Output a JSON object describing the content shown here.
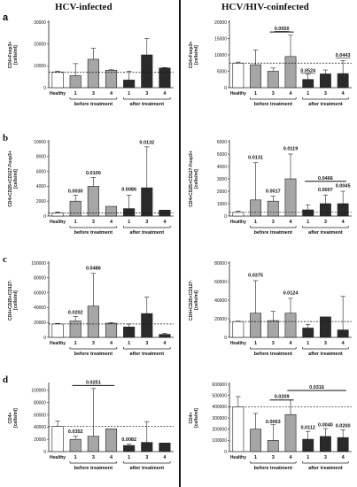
{
  "titles": {
    "left": "HCV-infected",
    "right": "HCV/HIV-coinfected"
  },
  "panel_letters": [
    "a",
    "b",
    "c",
    "d"
  ],
  "chart_data": [
    {
      "id": "a-left",
      "type": "bar",
      "ylabel": [
        "CD4+Foxp3+",
        "[cells/ml]"
      ],
      "ylim": [
        0,
        30000
      ],
      "yticks": [
        0,
        10000,
        20000,
        30000
      ],
      "yticklabels": [
        "0",
        "10000",
        "20000",
        "30000"
      ],
      "baseline": 7000,
      "bars": [
        {
          "label": "Healthy",
          "value": 7200,
          "err": 300,
          "group": "healthy"
        },
        {
          "label": "1",
          "value": 5500,
          "err": 5500,
          "group": "before"
        },
        {
          "label": "3",
          "value": 13000,
          "err": 5000,
          "group": "before"
        },
        {
          "label": "4",
          "value": 8000,
          "err": 200,
          "group": "before"
        },
        {
          "label": "1",
          "value": 3500,
          "err": 4000,
          "group": "after"
        },
        {
          "label": "3",
          "value": 15000,
          "err": 7500,
          "group": "after"
        },
        {
          "label": "4",
          "value": 9000,
          "err": 200,
          "group": "after"
        }
      ],
      "annotations": [],
      "brackets": []
    },
    {
      "id": "a-right",
      "type": "bar",
      "ylabel": [
        "CD4+Foxp3+",
        "[cells/ml]"
      ],
      "ylim": [
        0,
        20000
      ],
      "yticks": [
        0,
        5000,
        10000,
        15000,
        20000
      ],
      "yticklabels": [
        "0",
        "5000",
        "10000",
        "15000",
        "20000"
      ],
      "baseline": 7500,
      "bars": [
        {
          "label": "Healthy",
          "value": 7500,
          "err": 300,
          "group": "healthy"
        },
        {
          "label": "1",
          "value": 7000,
          "err": 4500,
          "group": "before"
        },
        {
          "label": "3",
          "value": 5000,
          "err": 1000,
          "group": "before"
        },
        {
          "label": "4",
          "value": 9500,
          "err": 6500,
          "group": "before"
        },
        {
          "label": "1",
          "value": 2500,
          "err": 1600,
          "group": "after"
        },
        {
          "label": "3",
          "value": 4200,
          "err": 1200,
          "group": "after"
        },
        {
          "label": "4",
          "value": 4300,
          "err": 4000,
          "group": "after"
        }
      ],
      "annotations": [
        {
          "text": "0.0524",
          "bar": 4,
          "y": 4300,
          "under": true
        },
        {
          "text": "0.0443",
          "bar": 6,
          "y": 9000,
          "under": true
        }
      ],
      "brackets": [
        {
          "text": "0.0550",
          "from": 2,
          "to": 3,
          "y": 17000,
          "under": true
        }
      ]
    },
    {
      "id": "b-left",
      "type": "bar",
      "ylabel": [
        "CD4+CD25+CD127-Foxp3+",
        "[cells/ml]"
      ],
      "ylim": [
        0,
        10000
      ],
      "yticks": [
        0,
        2000,
        4000,
        6000,
        8000,
        10000
      ],
      "yticklabels": [
        "0",
        "2000",
        "4000",
        "6000",
        "8000",
        "10000"
      ],
      "baseline": 400,
      "bars": [
        {
          "label": "Healthy",
          "value": 400,
          "err": 150,
          "group": "healthy"
        },
        {
          "label": "1",
          "value": 2000,
          "err": 800,
          "group": "before"
        },
        {
          "label": "3",
          "value": 4000,
          "err": 1200,
          "group": "before"
        },
        {
          "label": "4",
          "value": 1300,
          "err": 0,
          "group": "before"
        },
        {
          "label": "1",
          "value": 1000,
          "err": 1800,
          "group": "after"
        },
        {
          "label": "3",
          "value": 3800,
          "err": 5500,
          "group": "after"
        },
        {
          "label": "4",
          "value": 800,
          "err": 0,
          "group": "after"
        }
      ],
      "annotations": [
        {
          "text": "0.0030",
          "bar": 1,
          "y": 3000
        },
        {
          "text": "0.0100",
          "bar": 2,
          "y": 5400
        },
        {
          "text": "0.0086",
          "bar": 4,
          "y": 3200
        },
        {
          "text": "0.0132",
          "bar": 5,
          "y": 9500
        }
      ],
      "brackets": []
    },
    {
      "id": "b-right",
      "type": "bar",
      "ylabel": [
        "CD4+CD25+CD127-Foxp3+",
        "[cells/ml]"
      ],
      "ylim": [
        0,
        6000
      ],
      "yticks": [
        0,
        1000,
        2000,
        3000,
        4000,
        5000,
        6000
      ],
      "yticklabels": [
        "0",
        "1000",
        "2000",
        "3000",
        "4000",
        "5000",
        "6000"
      ],
      "baseline": 300,
      "bars": [
        {
          "label": "Healthy",
          "value": 300,
          "err": 100,
          "group": "healthy"
        },
        {
          "label": "1",
          "value": 1300,
          "err": 3000,
          "group": "before"
        },
        {
          "label": "3",
          "value": 1200,
          "err": 400,
          "group": "before"
        },
        {
          "label": "4",
          "value": 3000,
          "err": 2000,
          "group": "before"
        },
        {
          "label": "1",
          "value": 500,
          "err": 400,
          "group": "after"
        },
        {
          "label": "3",
          "value": 1000,
          "err": 700,
          "group": "after"
        },
        {
          "label": "4",
          "value": 1000,
          "err": 1000,
          "group": "after"
        }
      ],
      "annotations": [
        {
          "text": "0.0131",
          "bar": 1,
          "y": 4500
        },
        {
          "text": "0.0017",
          "bar": 2,
          "y": 1800
        },
        {
          "text": "0.0119",
          "bar": 3,
          "y": 5200
        },
        {
          "text": "0.0007",
          "bar": 5,
          "y": 1900
        },
        {
          "text": "0.0045",
          "bar": 6,
          "y": 2200
        }
      ],
      "brackets": [
        {
          "text": "0.0466",
          "from": 4,
          "to": 6,
          "y": 2800
        }
      ]
    },
    {
      "id": "c-left",
      "type": "bar",
      "ylabel": [
        "CD4+CD25+CD127-",
        "[cells/ml]"
      ],
      "ylim": [
        0,
        100000
      ],
      "yticks": [
        0,
        20000,
        40000,
        60000,
        80000,
        100000
      ],
      "yticklabels": [
        "0",
        "20000",
        "40000",
        "60000",
        "80000",
        "100000"
      ],
      "baseline": 18000,
      "bars": [
        {
          "label": "Healthy",
          "value": 18000,
          "err": 800,
          "group": "healthy"
        },
        {
          "label": "1",
          "value": 22000,
          "err": 6000,
          "group": "before"
        },
        {
          "label": "3",
          "value": 42000,
          "err": 44000,
          "group": "before"
        },
        {
          "label": "4",
          "value": 19000,
          "err": 800,
          "group": "before"
        },
        {
          "label": "1",
          "value": 14000,
          "err": 4000,
          "group": "after"
        },
        {
          "label": "3",
          "value": 32000,
          "err": 22000,
          "group": "after"
        },
        {
          "label": "4",
          "value": 4000,
          "err": 1500,
          "group": "after"
        }
      ],
      "annotations": [
        {
          "text": "0.0202",
          "bar": 1,
          "y": 30000
        },
        {
          "text": "0.0486",
          "bar": 2,
          "y": 89000
        }
      ],
      "brackets": []
    },
    {
      "id": "c-right",
      "type": "bar",
      "ylabel": [
        "CD4+CD25+CD127-",
        "[cells/ml]"
      ],
      "ylim": [
        0,
        80000
      ],
      "yticks": [
        0,
        20000,
        40000,
        60000,
        80000
      ],
      "yticklabels": [
        "0",
        "20000",
        "40000",
        "60000",
        "80000"
      ],
      "baseline": 17000,
      "bars": [
        {
          "label": "Healthy",
          "value": 17000,
          "err": 500,
          "group": "healthy"
        },
        {
          "label": "1",
          "value": 26000,
          "err": 35000,
          "group": "before"
        },
        {
          "label": "3",
          "value": 18000,
          "err": 10000,
          "group": "before"
        },
        {
          "label": "4",
          "value": 26000,
          "err": 16000,
          "group": "before"
        },
        {
          "label": "1",
          "value": 10000,
          "err": 4000,
          "group": "after"
        },
        {
          "label": "3",
          "value": 22000,
          "err": 0,
          "group": "after"
        },
        {
          "label": "4",
          "value": 8000,
          "err": 36000,
          "group": "after"
        }
      ],
      "annotations": [
        {
          "text": "0.0375",
          "bar": 1,
          "y": 64000
        },
        {
          "text": "0.0124",
          "bar": 3,
          "y": 45000
        }
      ],
      "brackets": []
    },
    {
      "id": "d-left",
      "type": "bar",
      "ylabel": [
        "CD4+",
        "[cells/ml]"
      ],
      "ylim": [
        0,
        110000
      ],
      "yticks": [
        0,
        20000,
        40000,
        60000,
        80000,
        100000
      ],
      "yticklabels": [
        "0",
        "20000",
        "40000",
        "60000",
        "80000",
        "100000"
      ],
      "baseline": 41000,
      "bars": [
        {
          "label": "Healthy",
          "value": 41000,
          "err": 9000,
          "group": "healthy"
        },
        {
          "label": "1",
          "value": 20000,
          "err": 5000,
          "group": "before"
        },
        {
          "label": "3",
          "value": 25000,
          "err": 78000,
          "group": "before"
        },
        {
          "label": "4",
          "value": 37000,
          "err": 0,
          "group": "before"
        },
        {
          "label": "1",
          "value": 10000,
          "err": 2000,
          "group": "after"
        },
        {
          "label": "3",
          "value": 15000,
          "err": 34000,
          "group": "after"
        },
        {
          "label": "4",
          "value": 14000,
          "err": 0,
          "group": "after"
        }
      ],
      "annotations": [
        {
          "text": "0.0352",
          "bar": 1,
          "y": 28000
        },
        {
          "text": "0.0082",
          "bar": 4,
          "y": 15000
        }
      ],
      "brackets": [
        {
          "text": "0.0251",
          "from": 1,
          "to": 3,
          "y": 108000
        }
      ]
    },
    {
      "id": "d-right",
      "type": "bar",
      "ylabel": [
        "CD4+",
        "[cells/ml]"
      ],
      "ylim": [
        0,
        600000
      ],
      "yticks": [
        0,
        100000,
        200000,
        300000,
        400000,
        500000,
        600000
      ],
      "yticklabels": [
        "0",
        "100000",
        "200000",
        "300000",
        "400000",
        "500000",
        "600000"
      ],
      "baseline": 400000,
      "bars": [
        {
          "label": "Healthy",
          "value": 400000,
          "err": 90000,
          "group": "healthy"
        },
        {
          "label": "1",
          "value": 200000,
          "err": 140000,
          "group": "before"
        },
        {
          "label": "3",
          "value": 100000,
          "err": 140000,
          "group": "before"
        },
        {
          "label": "4",
          "value": 330000,
          "err": 130000,
          "group": "before"
        },
        {
          "label": "1",
          "value": 110000,
          "err": 70000,
          "group": "after"
        },
        {
          "label": "3",
          "value": 135000,
          "err": 70000,
          "group": "after"
        },
        {
          "label": "4",
          "value": 125000,
          "err": 70000,
          "group": "after"
        }
      ],
      "annotations": [
        {
          "text": "0.0063",
          "bar": 2,
          "y": 240000
        },
        {
          "text": "0.0112",
          "bar": 4,
          "y": 190000
        },
        {
          "text": "0.0040",
          "bar": 5,
          "y": 215000
        },
        {
          "text": "0.0200",
          "bar": 6,
          "y": 205000
        }
      ],
      "brackets": [
        {
          "text": "0.0209",
          "from": 2,
          "to": 3,
          "y": 460000
        },
        {
          "text": "0.0316",
          "from": 3,
          "to": 6,
          "y": 545000
        }
      ]
    }
  ],
  "group_labels": {
    "before": "before treatment",
    "after": "after treatment"
  },
  "colors": {
    "healthy": "#ffffff",
    "before": "#a6a6a6",
    "after": "#2a2a2a",
    "stroke": "#222222"
  }
}
